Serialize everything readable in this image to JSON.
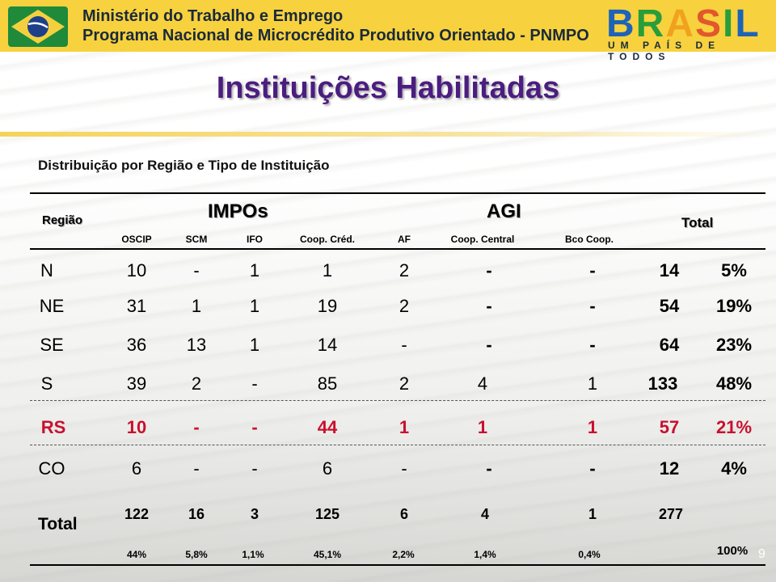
{
  "header": {
    "line1": "Ministério do Trabalho e Emprego",
    "line2": "Programa Nacional de Microcrédito Produtivo Orientado - PNMPO",
    "logo_text": "BRASIL",
    "logo_subtitle": "UM PAÍS DE TODOS",
    "emblem_icon": "brazil-flag-icon"
  },
  "title": "Instituições Habilitadas",
  "subtitle": "Distribuição por Região e Tipo de Instituição",
  "table": {
    "headers": {
      "region": "Região",
      "impos": "IMPOs",
      "agi": "AGI",
      "total": "Total",
      "sub": [
        "OSCIP",
        "SCM",
        "IFO",
        "Coop. Créd.",
        "AF",
        "Coop. Central",
        "Bco Coop."
      ]
    },
    "rows": [
      {
        "region": "N",
        "values": [
          "10",
          "-",
          "1",
          "1",
          "2",
          "-",
          "-"
        ],
        "total": "14",
        "pct": "5%"
      },
      {
        "region": "NE",
        "values": [
          "31",
          "1",
          "1",
          "19",
          "2",
          "-",
          "-"
        ],
        "total": "54",
        "pct": "19%"
      },
      {
        "region": "SE",
        "values": [
          "36",
          "13",
          "1",
          "14",
          "-",
          "-",
          "-"
        ],
        "total": "64",
        "pct": "23%"
      },
      {
        "region": "S",
        "values": [
          "39",
          "2",
          "-",
          "85",
          "2",
          "4",
          "1"
        ],
        "total": "133",
        "pct": "48%"
      },
      {
        "region": "RS",
        "values": [
          "10",
          "-",
          "-",
          "44",
          "1",
          "1",
          "1"
        ],
        "total": "57",
        "pct": "21%"
      },
      {
        "region": "CO",
        "values": [
          "6",
          "-",
          "-",
          "6",
          "-",
          "-",
          "-"
        ],
        "total": "12",
        "pct": "4%"
      }
    ],
    "total_row": {
      "label": "Total",
      "values": [
        "122",
        "16",
        "3",
        "125",
        "6",
        "4",
        "1"
      ],
      "total": "277",
      "pcts": [
        "44%",
        "5,8%",
        "1,1%",
        "45,1%",
        "2,2%",
        "1,4%",
        "0,4%"
      ],
      "total_pct": "100%"
    }
  },
  "page_number": "9",
  "colors": {
    "header_bg": "#f7d23e",
    "title": "#4b1d80",
    "highlight_row": "#c8102e"
  }
}
